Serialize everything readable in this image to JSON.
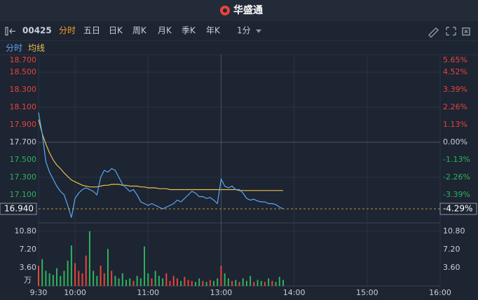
{
  "header": {
    "title": "华盛通"
  },
  "toolbar": {
    "code": "00425",
    "tabs": [
      "分时",
      "五日",
      "日K",
      "周K",
      "月K",
      "季K",
      "年K"
    ],
    "active_tab": 0,
    "period": "1分"
  },
  "chart_data": {
    "type": "line",
    "x": [
      0,
      3,
      6,
      9,
      12,
      15,
      18,
      21,
      24,
      27,
      30,
      33,
      36,
      39,
      42,
      45,
      48,
      51,
      54,
      57,
      60,
      63,
      66,
      69,
      72,
      75,
      78,
      81,
      84,
      87,
      90,
      93,
      96,
      99,
      102,
      105,
      108,
      111,
      114,
      117,
      120,
      123,
      126,
      129,
      132,
      135,
      138,
      141,
      144,
      147,
      150,
      153,
      156,
      159,
      162,
      165,
      168,
      171,
      174,
      177,
      180,
      183,
      186,
      189,
      192,
      195,
      198,
      201
    ],
    "xlim": [
      0,
      330
    ],
    "xticks": [
      {
        "value": 0,
        "label": "9:30"
      },
      {
        "value": 30,
        "label": "10:00"
      },
      {
        "value": 90,
        "label": "11:00"
      },
      {
        "value": 150,
        "label": "13:00"
      },
      {
        "value": 210,
        "label": "14:00"
      },
      {
        "value": 270,
        "label": "15:00"
      },
      {
        "value": 330,
        "label": "16:00"
      }
    ],
    "ylim": [
      16.78,
      18.7
    ],
    "yticks": [
      {
        "value": 18.7,
        "label": "18.700"
      },
      {
        "value": 18.5,
        "label": "18.500"
      },
      {
        "value": 18.3,
        "label": "18.300"
      },
      {
        "value": 18.1,
        "label": "18.100"
      },
      {
        "value": 17.9,
        "label": "17.900"
      },
      {
        "value": 17.7,
        "label": "17.700"
      },
      {
        "value": 17.5,
        "label": "17.500"
      },
      {
        "value": 17.3,
        "label": "17.300"
      },
      {
        "value": 17.1,
        "label": "17.100"
      }
    ],
    "y2lim": [
      -5.2,
      5.65
    ],
    "y2ticks": [
      {
        "value": 5.65,
        "label": "5.65%"
      },
      {
        "value": 4.52,
        "label": "4.52%"
      },
      {
        "value": 3.39,
        "label": "3.39%"
      },
      {
        "value": 2.26,
        "label": "2.26%"
      },
      {
        "value": 1.13,
        "label": "1.13%"
      },
      {
        "value": 0,
        "label": "0.00%"
      },
      {
        "value": -1.13,
        "label": "-1.13%"
      },
      {
        "value": -2.26,
        "label": "-2.26%"
      },
      {
        "value": -3.39,
        "label": "-3.39%"
      }
    ],
    "grid": true,
    "series": [
      {
        "name": "分时",
        "color": "#5aa9f5",
        "values": [
          18.04,
          17.8,
          17.48,
          17.36,
          17.28,
          17.2,
          17.14,
          17.1,
          16.98,
          16.84,
          17.06,
          17.12,
          17.16,
          17.18,
          17.16,
          17.14,
          17.1,
          17.3,
          17.38,
          17.36,
          17.4,
          17.38,
          17.3,
          17.22,
          17.18,
          17.14,
          17.16,
          17.1,
          17.02,
          17.0,
          16.98,
          17.0,
          16.98,
          16.96,
          16.94,
          16.96,
          16.98,
          17.0,
          17.04,
          17.02,
          17.06,
          17.1,
          17.14,
          17.12,
          17.08,
          17.08,
          17.06,
          17.07,
          17.04,
          17.0,
          17.28,
          17.2,
          17.18,
          17.2,
          17.16,
          17.16,
          17.12,
          17.06,
          17.04,
          17.05,
          17.03,
          17.02,
          17.02,
          17.0,
          17.0,
          16.99,
          16.96,
          16.94
        ]
      },
      {
        "name": "均线",
        "color": "#e8c04a",
        "values": [
          17.96,
          17.8,
          17.68,
          17.58,
          17.5,
          17.44,
          17.4,
          17.35,
          17.31,
          17.27,
          17.25,
          17.23,
          17.21,
          17.2,
          17.19,
          17.19,
          17.19,
          17.2,
          17.21,
          17.21,
          17.22,
          17.22,
          17.22,
          17.21,
          17.21,
          17.2,
          17.2,
          17.2,
          17.19,
          17.19,
          17.18,
          17.18,
          17.18,
          17.17,
          17.17,
          17.17,
          17.16,
          17.16,
          17.16,
          17.16,
          17.16,
          17.16,
          17.16,
          17.16,
          17.16,
          17.16,
          17.16,
          17.16,
          17.16,
          17.16,
          17.16,
          17.16,
          17.16,
          17.16,
          17.16,
          17.15,
          17.15,
          17.15,
          17.15,
          17.15,
          17.15,
          17.15,
          17.15,
          17.15,
          17.15,
          17.15,
          17.15,
          17.15
        ]
      }
    ],
    "last_price": {
      "value": 16.94,
      "label": "16.940"
    },
    "last_change": {
      "value": -4.29,
      "label": "-4.29%"
    },
    "volume": {
      "type": "bar",
      "unit": "万",
      "ylim": [
        0,
        11.9
      ],
      "yticks": [
        {
          "value": 10.8,
          "label": "10.80"
        },
        {
          "value": 7.2,
          "label": "7.20"
        },
        {
          "value": 3.6,
          "label": "3.60"
        }
      ],
      "up_color": "#e8443a",
      "down_color": "#2fb35c",
      "values": [
        4,
        5.3,
        3,
        2.5,
        2.2,
        3.5,
        2,
        3,
        5,
        8,
        4.5,
        3,
        2.5,
        6,
        10.8,
        3,
        2,
        4,
        2.5,
        7.3,
        3,
        2,
        1.5,
        2.5,
        1.2,
        1.5,
        1,
        2,
        1.5,
        7.8,
        2.5,
        1.5,
        3,
        2,
        1.5,
        2.5,
        1,
        2,
        1.5,
        1,
        1.8,
        1.2,
        1,
        0.8,
        1.5,
        1,
        0.8,
        1.2,
        1,
        1.5,
        4,
        2.5,
        1.5,
        1,
        1.2,
        0.8,
        1.5,
        1,
        2,
        0.8,
        1.2,
        1,
        0.8,
        1.5,
        1,
        0.8,
        1.8,
        1.2
      ]
    }
  }
}
